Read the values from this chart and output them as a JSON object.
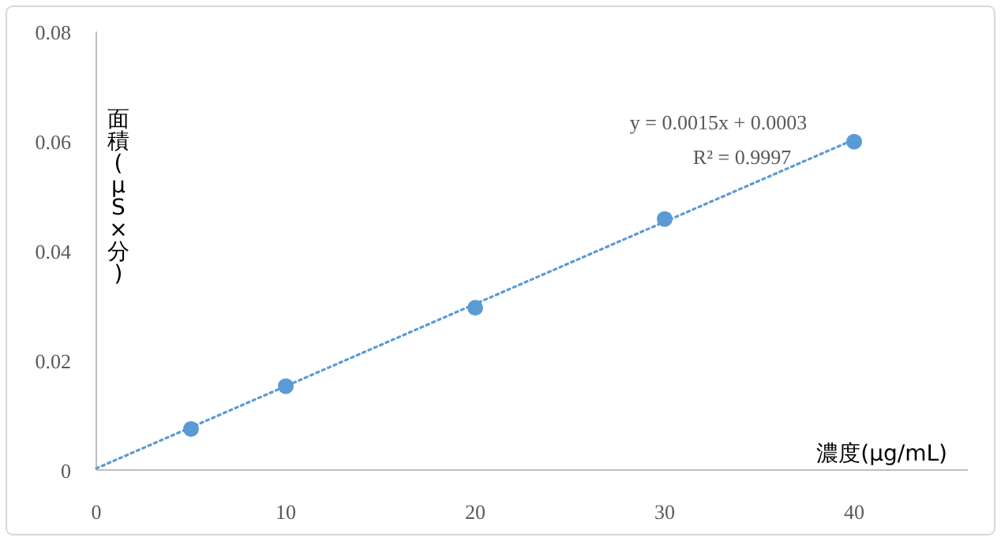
{
  "chart_data": {
    "type": "scatter",
    "xlabel": "濃度(μg/mL)",
    "ylabel": "面積(μS×分)",
    "xlim": [
      0,
      46
    ],
    "xticks": [
      0,
      10,
      20,
      30,
      40
    ],
    "ylim": [
      0,
      0.08
    ],
    "yticks": [
      0,
      0.02,
      0.04,
      0.06,
      0.08
    ],
    "grid": false,
    "series": [
      {
        "type": "scatter",
        "marker": "circle",
        "color": "#5b9bd5",
        "x": [
          5,
          10,
          20,
          30,
          40
        ],
        "values": [
          0.0075,
          0.0153,
          0.0296,
          0.0458,
          0.0599
        ]
      },
      {
        "type": "line",
        "marker": "none",
        "color": "#5b9bd5",
        "line_style": "dotted",
        "x": [
          0,
          40
        ],
        "values": [
          0.0003,
          0.0603
        ]
      }
    ],
    "annotations": [
      "y = 0.0015x + 0.0003",
      "R² = 0.9997"
    ]
  }
}
